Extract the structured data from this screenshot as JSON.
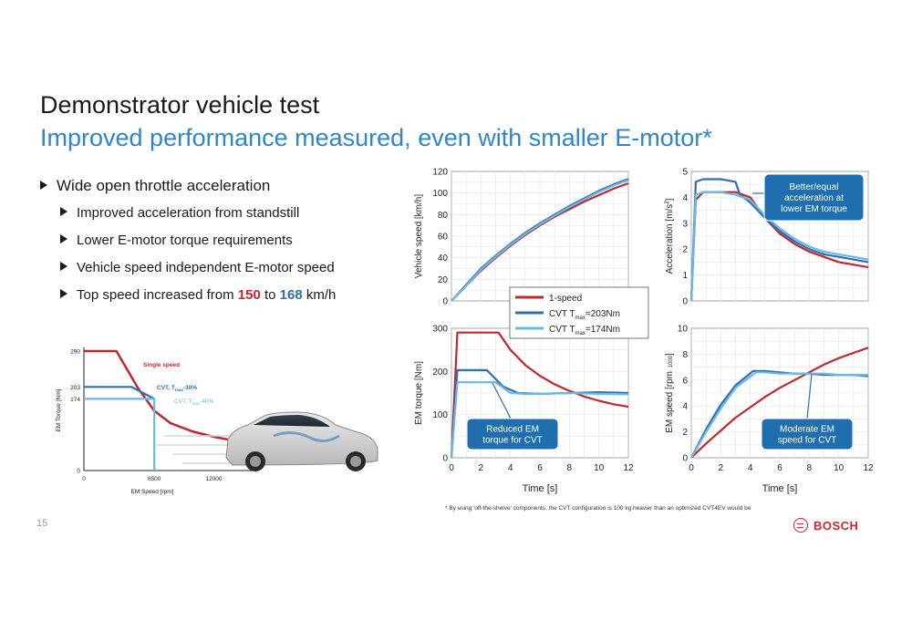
{
  "slide": {
    "title": "Demonstrator vehicle test",
    "subtitle": "Improved performance measured, even with smaller E-motor*",
    "page_number": "15",
    "footnote": "* By using 'off-the-shelve' components, the CVT configuration is 100 kg heavier than an optimized CVT4EV would be",
    "brand": "BOSCH"
  },
  "bullets": {
    "main": "Wide open throttle acceleration",
    "items": [
      "Improved acceleration from standstill",
      "Lower E-motor torque requirements",
      "Vehicle speed independent E-motor speed"
    ],
    "top_speed": {
      "prefix": "Top speed increased from ",
      "v1": "150",
      "mid": " to ",
      "v2": "168",
      "suffix": " km/h"
    }
  },
  "colors": {
    "red": "#c0282e",
    "dark_blue": "#2e6fb0",
    "light_blue": "#6ab8e4",
    "title_blue": "#2e86c8"
  },
  "chart_data": [
    {
      "id": "torque-speed-diagram",
      "type": "line",
      "xlabel": "EM Speed [rpm]",
      "ylabel": "EM Torque [Nm]",
      "xlim": [
        0,
        16000
      ],
      "ylim": [
        0,
        290
      ],
      "x_ticks": [
        "0",
        "6500",
        "12000"
      ],
      "x_tick_values": [
        0,
        6500,
        12000
      ],
      "y_ticks": [
        "0",
        "174",
        "203",
        "290"
      ],
      "y_tick_values": [
        0,
        174,
        203,
        290
      ],
      "series": [
        {
          "name": "Single speed",
          "color": "#c0282e",
          "x": [
            0,
            3000,
            5000,
            6500,
            8000,
            10000,
            12000,
            14000
          ],
          "y": [
            290,
            290,
            200,
            145,
            115,
            95,
            82,
            72
          ]
        },
        {
          "name": "CVT, Tmax-30%",
          "color": "#2e6fb0",
          "x": [
            0,
            4400,
            6500
          ],
          "y": [
            203,
            203,
            174
          ]
        },
        {
          "name": "CVT, Tmax-40%",
          "color": "#6ab8e4",
          "x": [
            0,
            6500,
            6500
          ],
          "y": [
            174,
            174,
            0
          ]
        }
      ],
      "labels": {
        "single": "Single speed",
        "cvt30_pre": "CVT, T",
        "cvt30_sub": "max",
        "cvt30_post": "-30%",
        "cvt40_pre": "CVT, T",
        "cvt40_sub": "max",
        "cvt40_post": "-40%"
      }
    },
    {
      "id": "vehicle-speed",
      "type": "line",
      "xlabel": "",
      "ylabel": "Vehicle speed [km/h]",
      "xlim": [
        0,
        12
      ],
      "ylim": [
        0,
        120
      ],
      "y_ticks": [
        "0",
        "20",
        "40",
        "60",
        "80",
        "100",
        "120"
      ],
      "y_tick_values": [
        0,
        20,
        40,
        60,
        80,
        100,
        120
      ],
      "series": [
        {
          "name": "1-speed",
          "color": "#c0282e",
          "x": [
            0,
            1,
            2,
            3,
            4,
            5,
            6,
            7,
            8,
            9,
            10,
            11,
            12
          ],
          "y": [
            0,
            14,
            28,
            40,
            51,
            61,
            70,
            78,
            85,
            92,
            98,
            104,
            109
          ]
        },
        {
          "name": "CVT Tmax=203Nm",
          "color": "#2e6fb0",
          "x": [
            0,
            1,
            2,
            3,
            4,
            5,
            6,
            7,
            8,
            9,
            10,
            11,
            12
          ],
          "y": [
            0,
            15,
            30,
            42,
            53,
            63,
            72,
            80,
            88,
            95,
            102,
            108,
            113
          ]
        },
        {
          "name": "CVT Tmax=174Nm",
          "color": "#6ab8e4",
          "x": [
            0,
            1,
            2,
            3,
            4,
            5,
            6,
            7,
            8,
            9,
            10,
            11,
            12
          ],
          "y": [
            0,
            14,
            29,
            41,
            52,
            62,
            71,
            79,
            87,
            94,
            101,
            107,
            112
          ]
        }
      ]
    },
    {
      "id": "acceleration",
      "type": "line",
      "xlabel": "",
      "ylabel_pre": "Acceleration [m/s",
      "ylabel_sup": "2",
      "ylabel_post": "]",
      "xlim": [
        0,
        12
      ],
      "ylim": [
        0,
        5
      ],
      "y_ticks": [
        "0",
        "1",
        "2",
        "3",
        "4",
        "5"
      ],
      "y_tick_values": [
        0,
        1,
        2,
        3,
        4,
        5
      ],
      "series": [
        {
          "name": "1-speed",
          "color": "#c0282e",
          "x": [
            0,
            0.3,
            0.8,
            2,
            3,
            4,
            5,
            6,
            7,
            8,
            9,
            10,
            11,
            12
          ],
          "y": [
            0,
            3.9,
            4.2,
            4.2,
            4.2,
            4.0,
            3.2,
            2.6,
            2.2,
            1.9,
            1.7,
            1.5,
            1.4,
            1.3
          ]
        },
        {
          "name": "CVT Tmax=203Nm",
          "color": "#2e6fb0",
          "x": [
            0,
            0.3,
            0.8,
            2,
            3,
            3.3,
            4,
            5,
            6,
            7,
            8,
            9,
            10,
            11,
            12
          ],
          "y": [
            0,
            4.6,
            4.7,
            4.7,
            4.6,
            4.1,
            3.8,
            3.2,
            2.7,
            2.3,
            2.0,
            1.8,
            1.7,
            1.6,
            1.5
          ]
        },
        {
          "name": "CVT Tmax=174Nm",
          "color": "#6ab8e4",
          "x": [
            0,
            0.3,
            0.8,
            2,
            3,
            4,
            5,
            6,
            7,
            8,
            9,
            10,
            11,
            12
          ],
          "y": [
            0,
            4.1,
            4.2,
            4.2,
            4.1,
            3.9,
            3.3,
            2.8,
            2.4,
            2.1,
            1.9,
            1.8,
            1.7,
            1.6
          ]
        }
      ],
      "annotation": [
        "Better/equal",
        "acceleration at",
        "lower EM torque"
      ]
    },
    {
      "id": "em-torque",
      "type": "line",
      "xlabel": "Time [s]",
      "ylabel": "EM torque [Nm]",
      "xlim": [
        0,
        12
      ],
      "ylim": [
        0,
        300
      ],
      "x_ticks": [
        "0",
        "2",
        "4",
        "6",
        "8",
        "10",
        "12"
      ],
      "x_tick_values": [
        0,
        2,
        4,
        6,
        8,
        10,
        12
      ],
      "y_ticks": [
        "0",
        "100",
        "200",
        "300"
      ],
      "y_tick_values": [
        0,
        100,
        200,
        300
      ],
      "series": [
        {
          "name": "1-speed",
          "color": "#c0282e",
          "x": [
            0,
            0.4,
            3.2,
            4,
            5,
            6,
            7,
            8,
            9,
            10,
            11,
            12
          ],
          "y": [
            0,
            290,
            290,
            250,
            215,
            190,
            170,
            155,
            142,
            132,
            124,
            118
          ]
        },
        {
          "name": "CVT Tmax=203Nm",
          "color": "#2e6fb0",
          "x": [
            0,
            0.4,
            2.4,
            3.5,
            4.5,
            6,
            8,
            10,
            12
          ],
          "y": [
            0,
            203,
            203,
            165,
            150,
            148,
            150,
            152,
            150
          ]
        },
        {
          "name": "CVT Tmax=174Nm",
          "color": "#6ab8e4",
          "x": [
            0,
            0.4,
            3,
            4,
            5,
            6,
            8,
            10,
            12
          ],
          "y": [
            0,
            175,
            175,
            150,
            148,
            148,
            150,
            148,
            147
          ]
        }
      ],
      "annotation": [
        "Reduced EM",
        "torque for CVT"
      ]
    },
    {
      "id": "em-speed",
      "type": "line",
      "xlabel": "Time [s]",
      "ylabel": "EM speed [rpm",
      "ylabel_small": "· 1000",
      "ylabel_post": "]",
      "xlim": [
        0,
        12
      ],
      "ylim": [
        0,
        10
      ],
      "x_ticks": [
        "0",
        "2",
        "4",
        "6",
        "8",
        "10",
        "12"
      ],
      "x_tick_values": [
        0,
        2,
        4,
        6,
        8,
        10,
        12
      ],
      "y_ticks": [
        "0",
        "2",
        "4",
        "6",
        "8",
        "10"
      ],
      "y_tick_values": [
        0,
        2,
        4,
        6,
        8,
        10
      ],
      "series": [
        {
          "name": "1-speed",
          "color": "#c0282e",
          "x": [
            0,
            1,
            2,
            3,
            4,
            5,
            6,
            7,
            8,
            9,
            10,
            11,
            12
          ],
          "y": [
            0,
            1.1,
            2.1,
            3.1,
            3.9,
            4.7,
            5.4,
            6.0,
            6.6,
            7.2,
            7.7,
            8.1,
            8.5
          ]
        },
        {
          "name": "CVT Tmax=203Nm",
          "color": "#2e6fb0",
          "x": [
            0,
            1,
            2,
            3,
            4.2,
            5,
            6,
            7,
            8,
            9,
            10,
            11,
            12
          ],
          "y": [
            0,
            2.2,
            4.1,
            5.6,
            6.7,
            6.7,
            6.6,
            6.5,
            6.5,
            6.4,
            6.4,
            6.4,
            6.3
          ]
        },
        {
          "name": "CVT Tmax=174Nm",
          "color": "#6ab8e4",
          "x": [
            0,
            1,
            2,
            3,
            4.4,
            5,
            6,
            7,
            8,
            9,
            10,
            11,
            12
          ],
          "y": [
            0,
            2.0,
            3.8,
            5.4,
            6.6,
            6.6,
            6.5,
            6.5,
            6.5,
            6.5,
            6.4,
            6.4,
            6.4
          ]
        }
      ],
      "annotation": [
        "Moderate EM",
        "speed for CVT"
      ]
    }
  ],
  "legend": {
    "placement": "center",
    "items": [
      {
        "label": "1-speed",
        "sub": "",
        "post": "",
        "color": "#c0282e"
      },
      {
        "label": "CVT  T",
        "sub": "max",
        "post": "=203Nm",
        "color": "#2e6fb0"
      },
      {
        "label": "CVT  T",
        "sub": "max",
        "post": "=174Nm",
        "color": "#6ab8e4"
      }
    ]
  }
}
